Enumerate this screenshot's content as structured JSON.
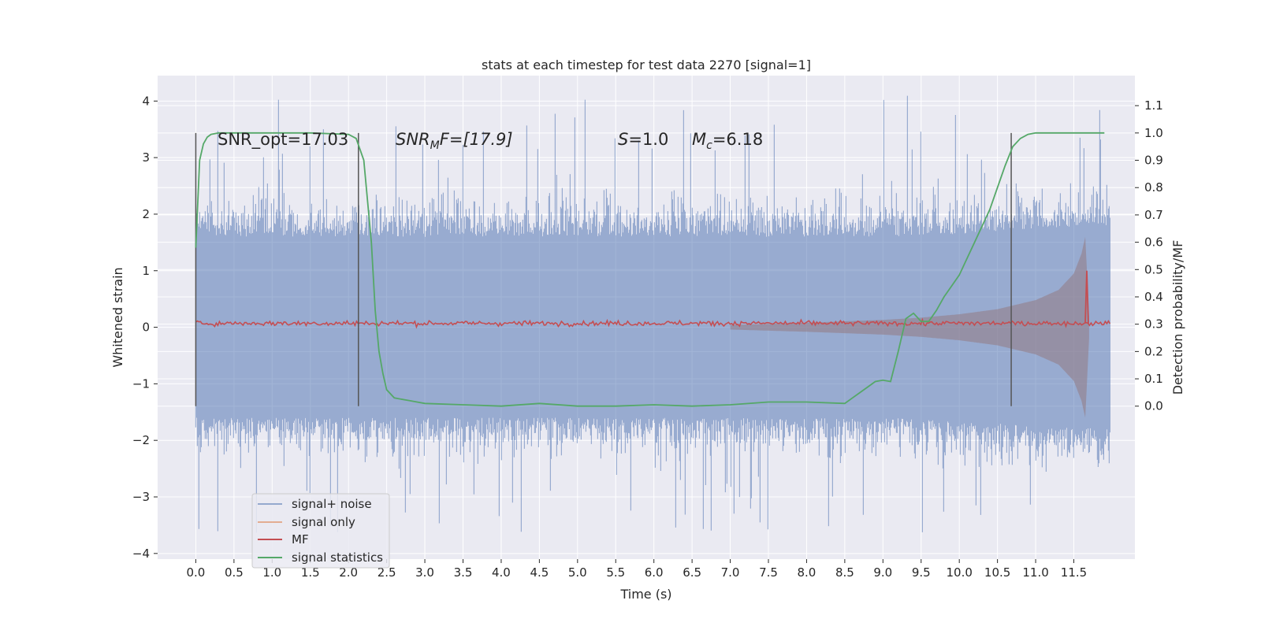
{
  "chart_data": {
    "type": "line",
    "title": "stats at each timestep for test data 2270 [signal=1]",
    "xlabel": "Time (s)",
    "ylabel": "Whitened strain",
    "y2label": "Detection probability/MF",
    "xlim": [
      -0.5,
      12.3
    ],
    "ylim": [
      -4.1,
      4.45
    ],
    "y2lim": [
      -0.56,
      1.21
    ],
    "x_ticks": [
      "0.0",
      "0.5",
      "1.0",
      "1.5",
      "2.0",
      "2.5",
      "3.0",
      "3.5",
      "4.0",
      "4.5",
      "5.0",
      "5.5",
      "6.0",
      "6.5",
      "7.0",
      "7.5",
      "8.0",
      "8.5",
      "9.0",
      "9.5",
      "10.0",
      "10.5",
      "11.0",
      "11.5"
    ],
    "y_ticks": [
      "4",
      "3",
      "2",
      "1",
      "0",
      "−1",
      "−2",
      "−3",
      "−4"
    ],
    "y2_ticks": [
      "1.1",
      "1.0",
      "0.9",
      "0.8",
      "0.7",
      "0.6",
      "0.5",
      "0.4",
      "0.3",
      "0.2",
      "0.1",
      "0.0"
    ],
    "grid": true,
    "legend_position": "lower-left",
    "annotations": {
      "snr_opt": "SNR_opt=17.03",
      "snr_mf_sym": "SNR",
      "snr_mf_sub": "M",
      "snr_mf_rest": "F=[17.9]",
      "s_sym": "S",
      "s_rest": "=1.0",
      "mc_sym": "M",
      "mc_sub": "c",
      "mc_rest": "=6.18"
    },
    "vertical_lines_x": [
      0.0,
      2.13,
      10.68
    ],
    "series": [
      {
        "name": "signal+ noise",
        "axis": "left",
        "color": "#4c72b0",
        "kind": "noise",
        "x_range": [
          0.0,
          11.98
        ],
        "envelope": [
          [
            0.0,
            1.6
          ],
          [
            1.0,
            1.6
          ],
          [
            5.0,
            1.6
          ],
          [
            9.0,
            1.6
          ],
          [
            10.0,
            1.65
          ],
          [
            11.0,
            1.75
          ],
          [
            11.98,
            1.8
          ]
        ],
        "max": 4.1,
        "min": -3.65
      },
      {
        "name": "signal only",
        "axis": "left",
        "color": "#dd8452",
        "kind": "chirp",
        "x": [
          7.0,
          8.0,
          9.0,
          9.5,
          10.0,
          10.5,
          11.0,
          11.3,
          11.5,
          11.6,
          11.65,
          11.7
        ],
        "amplitude": [
          0.04,
          0.08,
          0.13,
          0.17,
          0.23,
          0.32,
          0.48,
          0.66,
          0.95,
          1.3,
          1.6,
          0.2
        ]
      },
      {
        "name": "MF",
        "axis": "left",
        "color": "#c44e52",
        "kind": "noise",
        "x_range": [
          0.0,
          11.98
        ],
        "level": 0.07,
        "amplitude": 0.06,
        "peak": {
          "x": 11.67,
          "value": 1.0
        }
      },
      {
        "name": "signal statistics",
        "axis": "right",
        "color": "#55a868",
        "kind": "line",
        "x": [
          0.0,
          0.05,
          0.1,
          0.15,
          0.2,
          0.3,
          0.5,
          1.0,
          1.5,
          2.0,
          2.1,
          2.2,
          2.3,
          2.35,
          2.4,
          2.45,
          2.5,
          2.6,
          2.8,
          3.0,
          3.5,
          4.0,
          4.5,
          5.0,
          5.5,
          6.0,
          6.5,
          7.0,
          7.5,
          8.0,
          8.5,
          8.6,
          8.7,
          8.8,
          8.9,
          9.0,
          9.1,
          9.2,
          9.3,
          9.4,
          9.5,
          9.6,
          9.7,
          9.8,
          9.9,
          10.0,
          10.1,
          10.2,
          10.3,
          10.4,
          10.5,
          10.6,
          10.7,
          10.8,
          10.9,
          11.0,
          11.2,
          11.5,
          11.9
        ],
        "y": [
          0.58,
          0.9,
          0.96,
          0.985,
          0.995,
          1.0,
          1.0,
          1.0,
          1.0,
          0.995,
          0.98,
          0.9,
          0.6,
          0.35,
          0.2,
          0.12,
          0.06,
          0.03,
          0.02,
          0.01,
          0.005,
          0.0,
          0.01,
          0.0,
          0.0,
          0.005,
          0.0,
          0.005,
          0.015,
          0.015,
          0.01,
          0.03,
          0.05,
          0.07,
          0.09,
          0.095,
          0.09,
          0.2,
          0.32,
          0.34,
          0.31,
          0.31,
          0.35,
          0.4,
          0.44,
          0.48,
          0.54,
          0.6,
          0.66,
          0.72,
          0.8,
          0.88,
          0.95,
          0.98,
          0.995,
          1.0,
          1.0,
          1.0,
          1.0
        ]
      }
    ]
  }
}
